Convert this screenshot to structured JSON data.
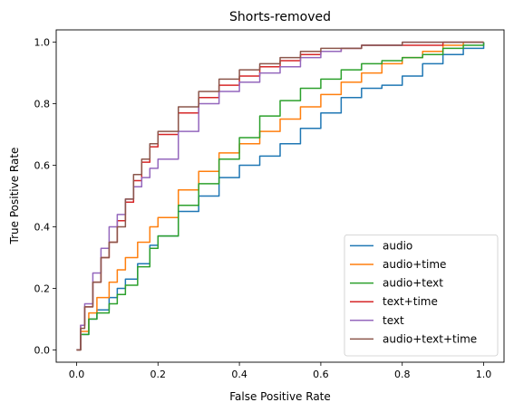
{
  "chart_data": {
    "type": "line",
    "title": "Shorts-removed",
    "xlabel": "False Positive Rate",
    "ylabel": "True Positive Rate",
    "xlim": [
      -0.05,
      1.05
    ],
    "ylim": [
      -0.04,
      1.04
    ],
    "xticks": [
      0.0,
      0.2,
      0.4,
      0.6,
      0.8,
      1.0
    ],
    "yticks": [
      0.0,
      0.2,
      0.4,
      0.6,
      0.8,
      1.0
    ],
    "xtick_labels": [
      "0.0",
      "0.2",
      "0.4",
      "0.6",
      "0.8",
      "1.0"
    ],
    "ytick_labels": [
      "0.0",
      "0.2",
      "0.4",
      "0.6",
      "0.8",
      "1.0"
    ],
    "grid": false,
    "legend_position": "lower right",
    "series": [
      {
        "name": "audio",
        "color": "#1f77b4",
        "x": [
          0.0,
          0.01,
          0.03,
          0.05,
          0.08,
          0.1,
          0.12,
          0.15,
          0.18,
          0.2,
          0.25,
          0.3,
          0.35,
          0.4,
          0.45,
          0.5,
          0.55,
          0.6,
          0.65,
          0.7,
          0.75,
          0.8,
          0.85,
          0.9,
          0.95,
          1.0
        ],
        "y": [
          0.0,
          0.05,
          0.1,
          0.13,
          0.17,
          0.2,
          0.23,
          0.28,
          0.34,
          0.37,
          0.45,
          0.5,
          0.56,
          0.6,
          0.63,
          0.67,
          0.72,
          0.77,
          0.82,
          0.85,
          0.86,
          0.89,
          0.93,
          0.96,
          0.98,
          1.0
        ]
      },
      {
        "name": "audio+time",
        "color": "#ff7f0e",
        "x": [
          0.0,
          0.01,
          0.03,
          0.05,
          0.08,
          0.1,
          0.12,
          0.15,
          0.18,
          0.2,
          0.25,
          0.3,
          0.35,
          0.4,
          0.45,
          0.5,
          0.55,
          0.6,
          0.65,
          0.7,
          0.75,
          0.8,
          0.85,
          0.9,
          0.95,
          1.0
        ],
        "y": [
          0.0,
          0.06,
          0.12,
          0.17,
          0.22,
          0.26,
          0.3,
          0.35,
          0.4,
          0.43,
          0.52,
          0.58,
          0.64,
          0.67,
          0.71,
          0.75,
          0.79,
          0.83,
          0.87,
          0.9,
          0.93,
          0.95,
          0.97,
          0.99,
          1.0,
          1.0
        ]
      },
      {
        "name": "audio+text",
        "color": "#2ca02c",
        "x": [
          0.0,
          0.01,
          0.03,
          0.05,
          0.08,
          0.1,
          0.12,
          0.15,
          0.18,
          0.2,
          0.25,
          0.3,
          0.35,
          0.4,
          0.45,
          0.5,
          0.55,
          0.6,
          0.65,
          0.7,
          0.75,
          0.8,
          0.85,
          0.9,
          0.95,
          1.0
        ],
        "y": [
          0.0,
          0.05,
          0.1,
          0.12,
          0.15,
          0.18,
          0.21,
          0.27,
          0.33,
          0.37,
          0.47,
          0.54,
          0.62,
          0.69,
          0.76,
          0.81,
          0.85,
          0.88,
          0.91,
          0.93,
          0.94,
          0.95,
          0.96,
          0.98,
          0.99,
          1.0
        ]
      },
      {
        "name": "text+time",
        "color": "#d62728",
        "x": [
          0.0,
          0.01,
          0.02,
          0.04,
          0.06,
          0.08,
          0.1,
          0.12,
          0.14,
          0.16,
          0.18,
          0.2,
          0.25,
          0.3,
          0.35,
          0.4,
          0.45,
          0.5,
          0.55,
          0.6,
          0.65,
          0.7,
          0.8,
          0.9,
          1.0
        ],
        "y": [
          0.0,
          0.08,
          0.14,
          0.22,
          0.3,
          0.35,
          0.42,
          0.48,
          0.55,
          0.61,
          0.66,
          0.7,
          0.77,
          0.82,
          0.86,
          0.89,
          0.92,
          0.94,
          0.96,
          0.97,
          0.98,
          0.99,
          0.99,
          1.0,
          1.0
        ]
      },
      {
        "name": "text",
        "color": "#9467bd",
        "x": [
          0.0,
          0.01,
          0.02,
          0.04,
          0.06,
          0.08,
          0.1,
          0.12,
          0.14,
          0.16,
          0.18,
          0.2,
          0.25,
          0.3,
          0.35,
          0.4,
          0.45,
          0.5,
          0.55,
          0.6,
          0.65,
          0.7,
          0.8,
          0.9,
          1.0
        ],
        "y": [
          0.0,
          0.08,
          0.15,
          0.25,
          0.33,
          0.4,
          0.44,
          0.49,
          0.53,
          0.56,
          0.59,
          0.62,
          0.71,
          0.8,
          0.84,
          0.87,
          0.9,
          0.92,
          0.95,
          0.97,
          0.98,
          0.99,
          1.0,
          1.0,
          1.0
        ]
      },
      {
        "name": "audio+text+time",
        "color": "#8c564b",
        "x": [
          0.0,
          0.01,
          0.02,
          0.04,
          0.06,
          0.08,
          0.1,
          0.12,
          0.14,
          0.16,
          0.18,
          0.2,
          0.25,
          0.3,
          0.35,
          0.4,
          0.45,
          0.5,
          0.55,
          0.6,
          0.65,
          0.7,
          0.8,
          0.9,
          1.0
        ],
        "y": [
          0.0,
          0.07,
          0.14,
          0.22,
          0.3,
          0.35,
          0.4,
          0.49,
          0.57,
          0.62,
          0.67,
          0.71,
          0.79,
          0.84,
          0.88,
          0.91,
          0.93,
          0.95,
          0.97,
          0.98,
          0.98,
          0.99,
          1.0,
          1.0,
          1.0
        ]
      }
    ]
  }
}
